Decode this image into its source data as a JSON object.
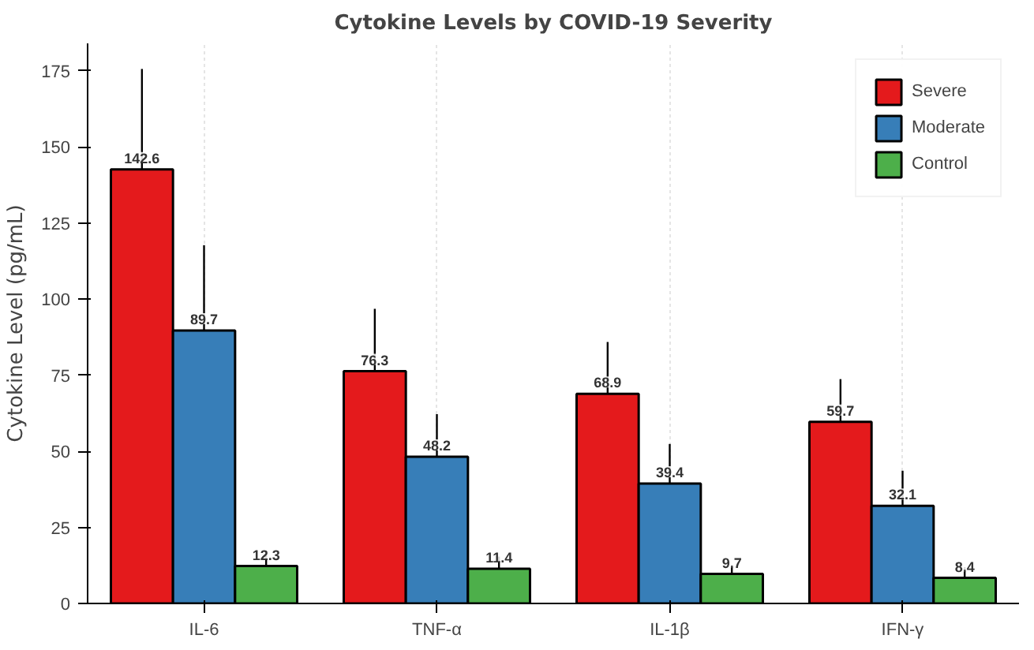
{
  "chart_data": {
    "type": "bar",
    "title": "Cytokine Levels by COVID-19 Severity",
    "ylabel": "Cytokine Level (pg/mL)",
    "categories": [
      "IL-6",
      "TNF-α",
      "IL-1β",
      "IFN-γ"
    ],
    "series": [
      {
        "name": "Severe",
        "color": "#e41a1c",
        "values": [
          142.6,
          76.3,
          68.9,
          59.7
        ],
        "errors": [
          33,
          20.5,
          17,
          14
        ]
      },
      {
        "name": "Moderate",
        "color": "#377eb8",
        "values": [
          89.7,
          48.2,
          39.4,
          32.1
        ],
        "errors": [
          28,
          14,
          13,
          11.5
        ]
      },
      {
        "name": "Control",
        "color": "#4daf4a",
        "values": [
          12.3,
          11.4,
          9.7,
          8.4
        ],
        "errors": [
          5,
          4,
          3,
          3.5
        ]
      }
    ],
    "ylim": [
      0,
      184
    ],
    "yticks": [
      0,
      25,
      50,
      75,
      100,
      125,
      150,
      175
    ],
    "data_labels": true,
    "grid": "x",
    "legend": "top right"
  }
}
